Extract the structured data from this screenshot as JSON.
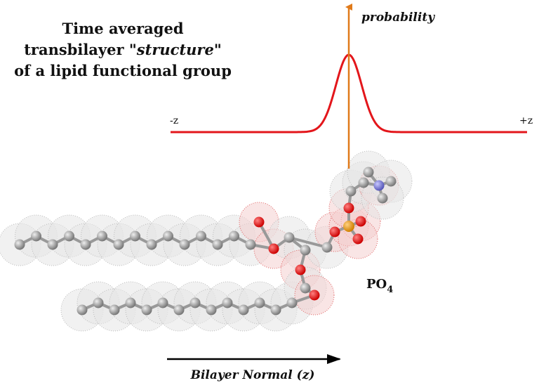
{
  "title": {
    "line1": "Time averaged",
    "line2_start": "transbilayer \"",
    "line2_emph": "structure",
    "line2_end": "\"",
    "line3": "of a lipid functional group"
  },
  "axis": {
    "probability": "probability",
    "minus": "-z",
    "plus": "+z",
    "normal": "Bilayer Normal (z)"
  },
  "group": {
    "name": "PO",
    "subscript": "4"
  }
}
